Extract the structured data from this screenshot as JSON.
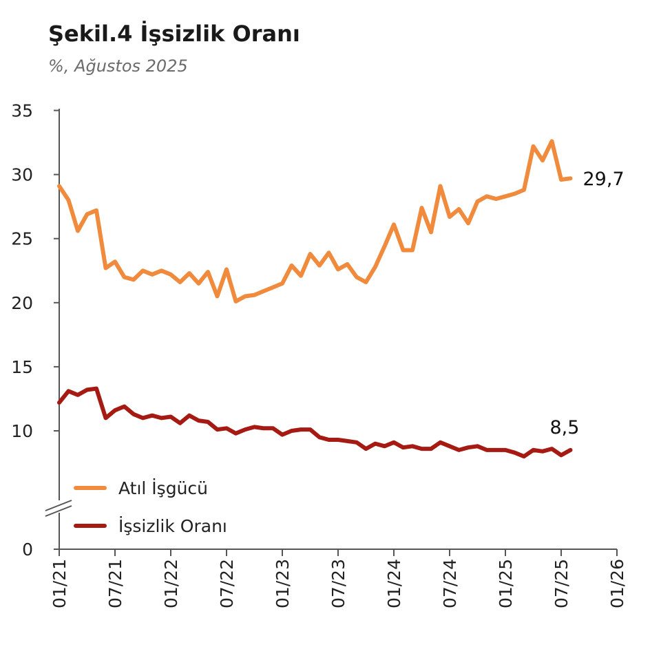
{
  "title": "Şekil.4 İşsizlik Oranı",
  "subtitle": "%, Ağustos 2025",
  "chart_data": {
    "type": "line",
    "title": "Şekil.4 İşsizlik Oranı",
    "subtitle": "%, Ağustos 2025",
    "xlabel": "",
    "ylabel": "",
    "yticks": [
      "0",
      "10",
      "15",
      "20",
      "25",
      "30",
      "35"
    ],
    "ylim": [
      0,
      35
    ],
    "axis_break": true,
    "xticks": [
      "01/21",
      "07/21",
      "01/22",
      "07/22",
      "01/23",
      "07/23",
      "01/24",
      "07/24",
      "01/25",
      "07/25",
      "01/26"
    ],
    "x": [
      "01/21",
      "02/21",
      "03/21",
      "04/21",
      "05/21",
      "06/21",
      "07/21",
      "08/21",
      "09/21",
      "10/21",
      "11/21",
      "12/21",
      "01/22",
      "02/22",
      "03/22",
      "04/22",
      "05/22",
      "06/22",
      "07/22",
      "08/22",
      "09/22",
      "10/22",
      "11/22",
      "12/22",
      "01/23",
      "02/23",
      "03/23",
      "04/23",
      "05/23",
      "06/23",
      "07/23",
      "08/23",
      "09/23",
      "10/23",
      "11/23",
      "12/23",
      "01/24",
      "02/24",
      "03/24",
      "04/24",
      "05/24",
      "06/24",
      "07/24",
      "08/24",
      "09/24",
      "10/24",
      "11/24",
      "12/24",
      "01/25",
      "02/25",
      "03/25",
      "04/25",
      "05/25",
      "06/25",
      "07/25",
      "08/25"
    ],
    "legend_position": "bottom-left",
    "grid": false,
    "series": [
      {
        "name": "Atıl İşgücü",
        "color": "#f08a3c",
        "values": [
          29.1,
          28.0,
          25.6,
          26.9,
          27.2,
          22.7,
          23.2,
          22.0,
          21.8,
          22.5,
          22.2,
          22.5,
          22.2,
          21.6,
          22.3,
          21.5,
          22.4,
          20.5,
          22.6,
          20.1,
          20.5,
          20.6,
          20.9,
          21.2,
          21.5,
          22.9,
          22.1,
          23.8,
          22.9,
          23.9,
          22.6,
          23.0,
          22.0,
          21.6,
          22.8,
          24.4,
          26.1,
          24.1,
          24.1,
          27.4,
          25.5,
          29.1,
          26.7,
          27.3,
          26.2,
          27.9,
          28.3,
          28.1,
          28.3,
          28.5,
          28.8,
          32.2,
          31.1,
          32.6,
          29.6,
          29.7
        ],
        "end_label": "29,7"
      },
      {
        "name": "İşsizlik Oranı",
        "color": "#a51b14",
        "values": [
          12.2,
          13.1,
          12.8,
          13.2,
          13.3,
          11.0,
          11.6,
          11.9,
          11.3,
          11.0,
          11.2,
          11.0,
          11.1,
          10.6,
          11.2,
          10.8,
          10.7,
          10.1,
          10.2,
          9.8,
          10.1,
          10.3,
          10.2,
          10.2,
          9.7,
          10.0,
          10.1,
          10.1,
          9.5,
          9.3,
          9.3,
          9.2,
          9.1,
          8.6,
          9.0,
          8.8,
          9.1,
          8.7,
          8.8,
          8.6,
          8.6,
          9.1,
          8.8,
          8.5,
          8.7,
          8.8,
          8.5,
          8.5,
          8.5,
          8.3,
          8.0,
          8.5,
          8.4,
          8.6,
          8.1,
          8.5
        ],
        "end_label": "8,5"
      }
    ]
  }
}
